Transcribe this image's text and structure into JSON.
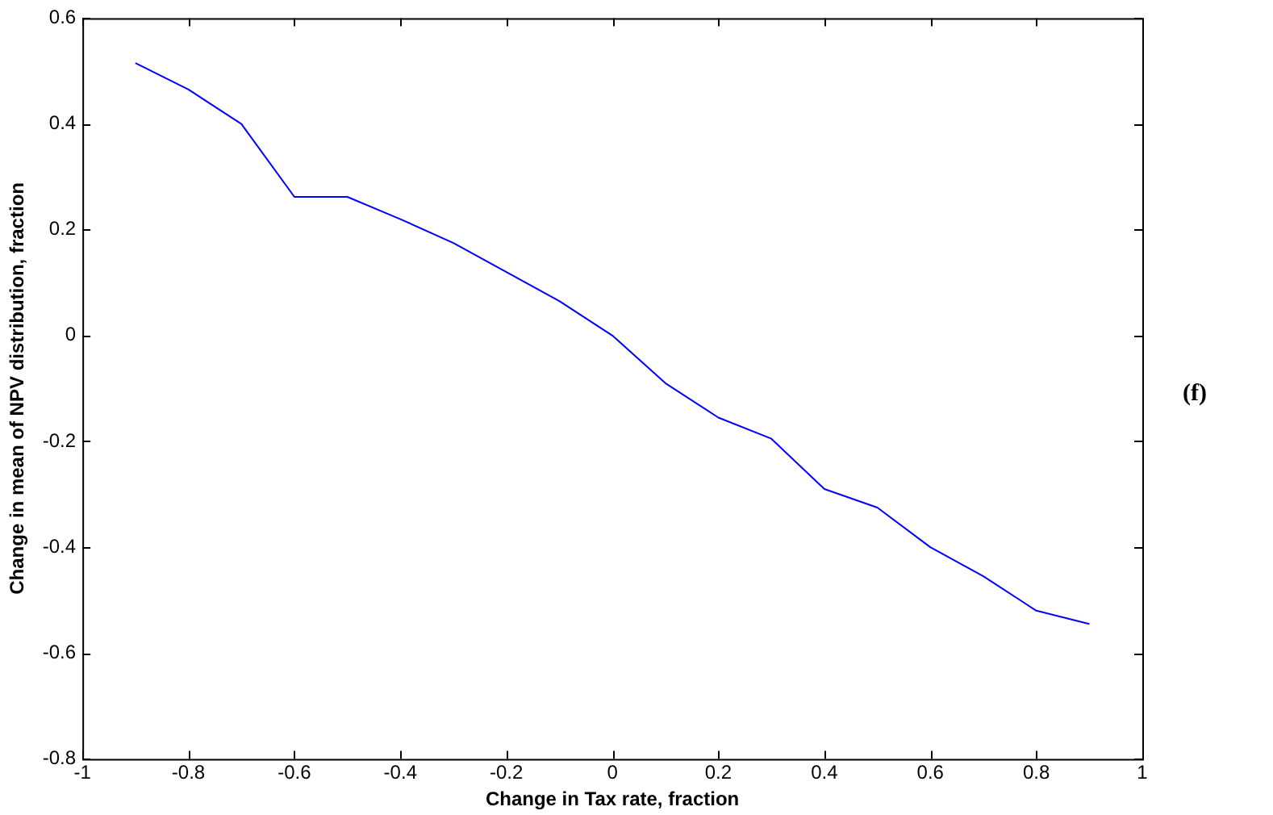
{
  "chart_data": {
    "type": "line",
    "xlabel": "Change in Tax rate, fraction",
    "ylabel": "Change in mean of NPV distribution, fraction",
    "annotations": [
      "(f)"
    ],
    "x": [
      -0.9,
      -0.8,
      -0.7,
      -0.6,
      -0.5,
      -0.4,
      -0.3,
      -0.2,
      -0.1,
      0,
      0.1,
      0.2,
      0.3,
      0.4,
      0.5,
      0.6,
      0.7,
      0.8,
      0.9
    ],
    "series": [
      {
        "color": "#0000ff",
        "values": [
          0.515,
          0.465,
          0.4,
          0.262,
          0.262,
          0.22,
          0.175,
          0.12,
          0.065,
          0,
          -0.09,
          -0.155,
          -0.195,
          -0.29,
          -0.325,
          -0.4,
          -0.455,
          -0.52,
          -0.545
        ]
      }
    ],
    "xlim": [
      -1,
      1
    ],
    "xticks": [
      -1,
      -0.8,
      -0.6,
      -0.4,
      -0.2,
      0,
      0.2,
      0.4,
      0.6,
      0.8,
      1
    ],
    "ylim": [
      -0.8,
      0.6
    ],
    "yticks": [
      -0.8,
      -0.6,
      -0.4,
      -0.2,
      0,
      0.2,
      0.4,
      0.6
    ],
    "legend": false,
    "marker": "none",
    "line_style": "solid"
  }
}
